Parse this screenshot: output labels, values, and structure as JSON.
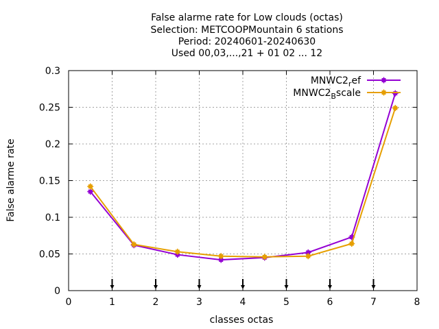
{
  "chart_data": {
    "type": "line",
    "title_lines": [
      "False alarme rate  for Low clouds (octas)",
      "Selection: METCOOPMountain      6 stations",
      "Period: 20240601-20240630",
      "Used 00,03,...,21 + 01 02 ... 12"
    ],
    "xlabel": "classes octas",
    "ylabel": "False alarme rate",
    "xlim": [
      0,
      8
    ],
    "ylim": [
      0,
      0.3
    ],
    "xticks": [
      0,
      1,
      2,
      3,
      4,
      5,
      6,
      7,
      8
    ],
    "yticks": [
      0,
      0.05,
      0.1,
      0.15,
      0.2,
      0.25,
      0.3
    ],
    "xtick_labels": [
      "0",
      "1",
      "2",
      "3",
      "4",
      "5",
      "6",
      "7",
      "8"
    ],
    "ytick_labels": [
      "0",
      "0.05",
      "0.1",
      "0.15",
      "0.2",
      "0.25",
      "0.3"
    ],
    "grid": true,
    "legend_position": "top-right",
    "arrow_markers_x": [
      1,
      2,
      3,
      4,
      5,
      6,
      7
    ],
    "series": [
      {
        "name": "MNWC2_ref",
        "legend_base": "MNWC2",
        "legend_sub": "r",
        "legend_rest": "ef",
        "color": "#9400d3",
        "x": [
          0.5,
          1.5,
          2.5,
          3.5,
          4.5,
          5.5,
          6.5,
          7.5
        ],
        "y": [
          0.135,
          0.062,
          0.049,
          0.042,
          0.045,
          0.052,
          0.073,
          0.269
        ]
      },
      {
        "name": "MNWC2_Bscale",
        "legend_base": "MNWC2",
        "legend_sub": "B",
        "legend_rest": "scale",
        "color": "#e69f00",
        "x": [
          0.5,
          1.5,
          2.5,
          3.5,
          4.5,
          5.5,
          6.5,
          7.5
        ],
        "y": [
          0.142,
          0.063,
          0.053,
          0.047,
          0.046,
          0.047,
          0.064,
          0.249
        ]
      }
    ]
  }
}
